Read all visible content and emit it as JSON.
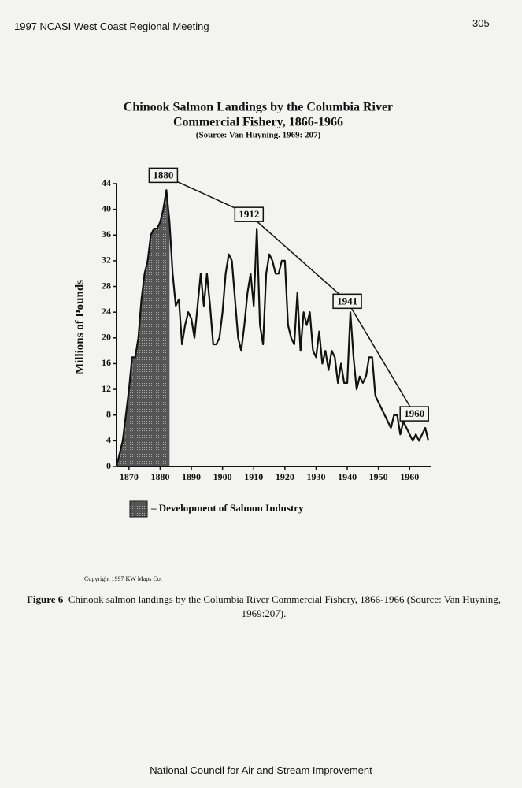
{
  "header": {
    "left": "1997 NCASI West Coast Regional Meeting",
    "right": "305"
  },
  "chart_data": {
    "type": "line",
    "title": [
      "Chinook Salmon Landings by the Columbia River",
      "Commercial Fishery, 1866-1966"
    ],
    "subtitle": "(Source:  Van Huyning. 1969: 207)",
    "y_label": "Millions of Pounds",
    "color": "#111111",
    "x": [
      1866,
      1867,
      1868,
      1869,
      1870,
      1871,
      1872,
      1873,
      1874,
      1875,
      1876,
      1877,
      1878,
      1879,
      1880,
      1881,
      1882,
      1883,
      1884,
      1885,
      1886,
      1887,
      1888,
      1889,
      1890,
      1891,
      1892,
      1893,
      1894,
      1895,
      1896,
      1897,
      1898,
      1899,
      1900,
      1901,
      1902,
      1903,
      1904,
      1905,
      1906,
      1907,
      1908,
      1909,
      1910,
      1911,
      1912,
      1913,
      1914,
      1915,
      1916,
      1917,
      1918,
      1919,
      1920,
      1921,
      1922,
      1923,
      1924,
      1925,
      1926,
      1927,
      1928,
      1929,
      1930,
      1931,
      1932,
      1933,
      1934,
      1935,
      1936,
      1937,
      1938,
      1939,
      1940,
      1941,
      1942,
      1943,
      1944,
      1945,
      1946,
      1947,
      1948,
      1949,
      1950,
      1951,
      1952,
      1953,
      1954,
      1955,
      1956,
      1957,
      1958,
      1959,
      1960,
      1961,
      1962,
      1963,
      1964,
      1965,
      1966
    ],
    "values": [
      0,
      2,
      4,
      8,
      12,
      17,
      17,
      20,
      26,
      30,
      32,
      36,
      37,
      37,
      38,
      40,
      43,
      38,
      30,
      25,
      26,
      19,
      22,
      24,
      23,
      20,
      25,
      30,
      25,
      30,
      25,
      19,
      19,
      20,
      24,
      30,
      33,
      32,
      26,
      20,
      18,
      22,
      27,
      30,
      25,
      37,
      22,
      19,
      30,
      33,
      32,
      30,
      30,
      32,
      32,
      22,
      20,
      19,
      27,
      18,
      24,
      22,
      24,
      18,
      17,
      21,
      16,
      18,
      15,
      18,
      17,
      13,
      16,
      13,
      13,
      24,
      17,
      12,
      14,
      13,
      14,
      17,
      17,
      11,
      10,
      9,
      8,
      7,
      6,
      8,
      8,
      5,
      7,
      6,
      5,
      4,
      5,
      4,
      5,
      6,
      4
    ],
    "xlim": [
      1866,
      1967
    ],
    "xticks": [
      1870,
      1880,
      1890,
      1900,
      1910,
      1920,
      1930,
      1940,
      1950,
      1960
    ],
    "ylim": [
      0,
      44
    ],
    "yticks": [
      0,
      4,
      8,
      12,
      16,
      20,
      24,
      28,
      32,
      36,
      40,
      44
    ],
    "annotations": [
      {
        "label": "1880",
        "x": 1881,
        "y": 45.3
      },
      {
        "label": "1912",
        "x": 1908.5,
        "y": 39.2
      },
      {
        "label": "1941",
        "x": 1940,
        "y": 25.7
      },
      {
        "label": "1960",
        "x": 1961.5,
        "y": 8.2
      }
    ],
    "shade": {
      "label": "– Development of Salmon Industry",
      "x": [
        1866,
        1883
      ]
    }
  },
  "copyright": "Copyright 1997 KW Maps Co.",
  "caption": {
    "label": "Figure 6",
    "text": "Chinook salmon landings by the Columbia River Commercial Fishery, 1866-1966 (Source: Van Huyning, 1969:207)."
  },
  "footer": "National Council for Air and Stream Improvement"
}
